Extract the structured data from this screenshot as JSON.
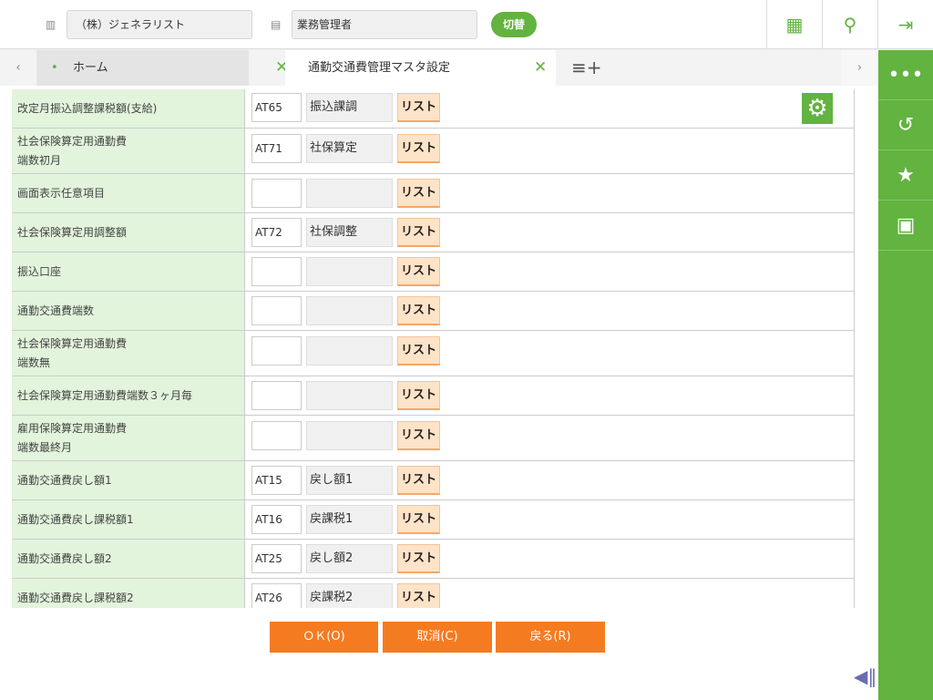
{
  "header": {
    "company": "（株）ジェネラリスト",
    "role": "業務管理者",
    "switch_label": "切替"
  },
  "tabs": [
    {
      "label": "ホーム",
      "active": false
    },
    {
      "label": "通勤交通費管理マスタ設定",
      "active": true
    }
  ],
  "rows": [
    {
      "label": "改定月振込調整課税額(支給)",
      "code": "AT65",
      "name": "振込課調"
    },
    {
      "label": "社会保険算定用通勤費\n端数初月",
      "code": "AT71",
      "name": "社保算定"
    },
    {
      "label": "画面表示任意項目",
      "code": "",
      "name": ""
    },
    {
      "label": "社会保険算定用調整額",
      "code": "AT72",
      "name": "社保調整"
    },
    {
      "label": "振込口座",
      "code": "",
      "name": ""
    },
    {
      "label": "通勤交通費端数",
      "code": "",
      "name": ""
    },
    {
      "label": "社会保険算定用通勤費\n端数無",
      "code": "",
      "name": ""
    },
    {
      "label": "社会保険算定用通勤費端数３ヶ月毎",
      "code": "",
      "name": ""
    },
    {
      "label": "雇用保険算定用通勤費\n端数最終月",
      "code": "",
      "name": ""
    },
    {
      "label": "通勤交通費戻し額1",
      "code": "AT15",
      "name": "戻し額1"
    },
    {
      "label": "通勤交通費戻し課税額1",
      "code": "AT16",
      "name": "戻課税1"
    },
    {
      "label": "通勤交通費戻し額2",
      "code": "AT25",
      "name": "戻し額2"
    },
    {
      "label": "通勤交通費戻し課税額2",
      "code": "AT26",
      "name": "戻課税2"
    }
  ],
  "list_label": "リスト",
  "actions": {
    "ok": "ＯＫ(O)",
    "cancel": "取消(C)",
    "back": "戻る(R)"
  },
  "colors": {
    "accent": "#62b33f",
    "action": "#f57b20",
    "label_bg": "#e2f4dc"
  }
}
